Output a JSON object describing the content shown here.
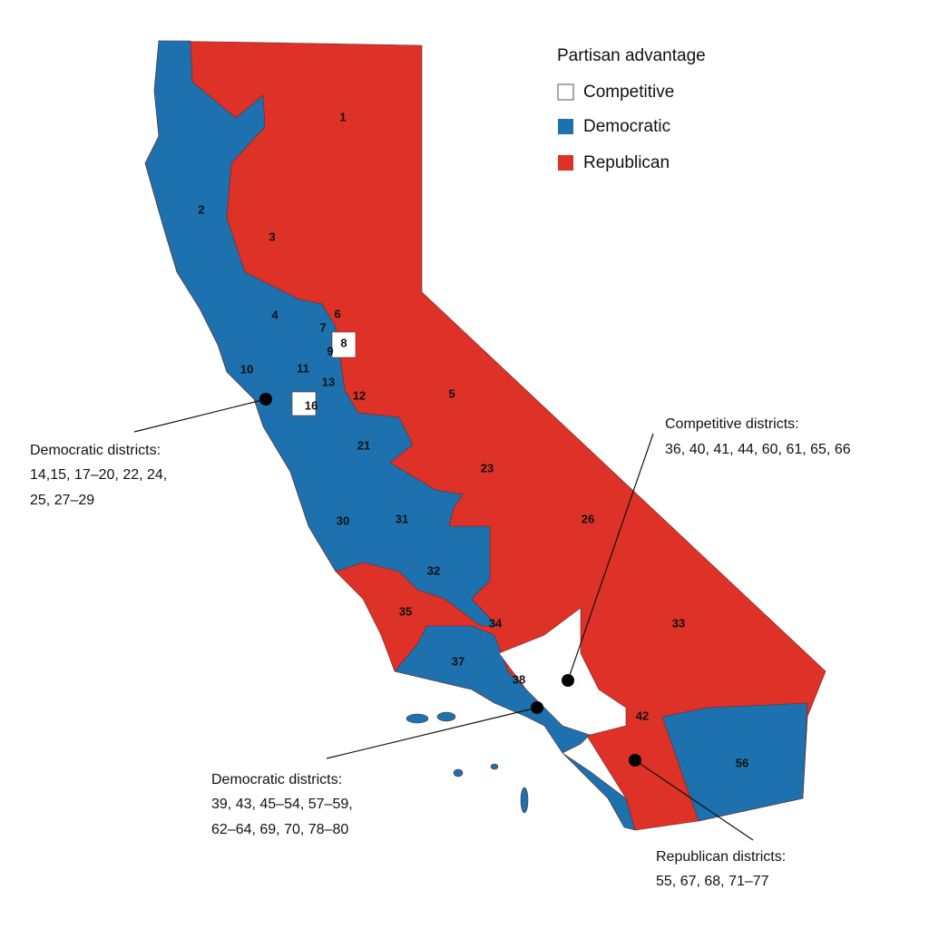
{
  "legend": {
    "title": "Partisan advantage",
    "items": [
      "Competitive",
      "Democratic",
      "Republican"
    ]
  },
  "districts": [
    "1",
    "2",
    "3",
    "4",
    "5",
    "6",
    "7",
    "8",
    "9",
    "10",
    "11",
    "12",
    "13",
    "16",
    "21",
    "23",
    "26",
    "30",
    "31",
    "32",
    "33",
    "34",
    "35",
    "37",
    "38",
    "42",
    "56"
  ],
  "callouts": [
    {
      "lines": [
        "Democratic districts:",
        "14,15, 17–20, 22, 24,",
        "25, 27–29"
      ]
    },
    {
      "lines": [
        "Competitive districts:",
        "36, 40, 41, 44, 60, 61, 65, 66"
      ]
    },
    {
      "lines": [
        "Democratic districts:",
        "39, 43, 45–54, 57–59,",
        "62–64, 69, 70, 78–80"
      ]
    },
    {
      "lines": [
        "Republican districts:",
        "55, 67, 68, 71–77"
      ]
    }
  ]
}
